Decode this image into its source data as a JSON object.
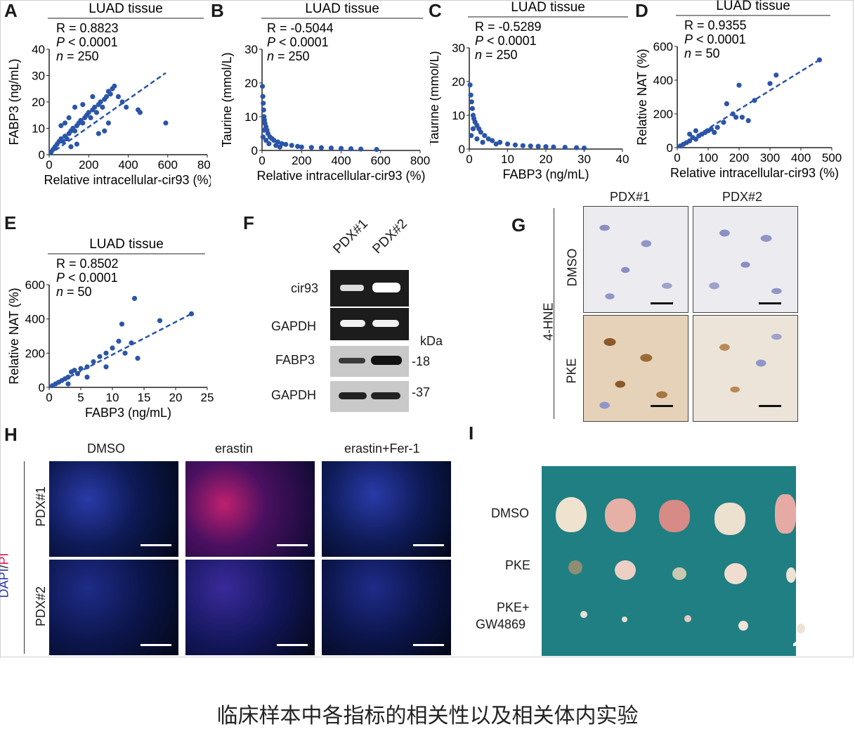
{
  "caption": "临床样本中各指标的相关性以及相关体内实验",
  "panel_letters": {
    "A": "A",
    "B": "B",
    "C": "C",
    "D": "D",
    "E": "E",
    "F": "F",
    "G": "G",
    "H": "H",
    "I": "I"
  },
  "scatter_panels": {
    "A": {
      "header": "LUAD tissue",
      "stats": [
        "R = 0.8823",
        "P < 0.0001",
        "n = 250"
      ],
      "xlabel": "Relative intracellular-cir93 (%)",
      "ylabel": "FABP3 (ng/mL)",
      "xticks": [
        "0",
        "200",
        "400",
        "600",
        "800"
      ],
      "yticks": [
        "0",
        "10",
        "20",
        "30",
        "40"
      ]
    },
    "B": {
      "header": "LUAD tissue",
      "stats": [
        "R = -0.5044",
        "P < 0.0001",
        "n = 250"
      ],
      "xlabel": "Relative intracellular-cir93 (%)",
      "ylabel": "Taurine (mmol/L)",
      "xticks": [
        "0",
        "200",
        "400",
        "600",
        "800"
      ],
      "yticks": [
        "0",
        "10",
        "20",
        "30"
      ]
    },
    "C": {
      "header": "LUAD tissue",
      "stats": [
        "R = -0.5289",
        "P < 0.0001",
        "n = 250"
      ],
      "xlabel": "FABP3 (ng/mL)",
      "ylabel": "Taurine (mmol/L)",
      "xticks": [
        "0",
        "10",
        "20",
        "30",
        "40"
      ],
      "yticks": [
        "0",
        "10",
        "20",
        "30"
      ]
    },
    "D": {
      "header": "LUAD tissue",
      "stats": [
        "R = 0.9355",
        "P < 0.0001",
        "n = 50"
      ],
      "xlabel": "Relative intracellular-cir93 (%)",
      "ylabel": "Relative NAT (%)",
      "xticks": [
        "0",
        "100",
        "200",
        "300",
        "400",
        "500"
      ],
      "yticks": [
        "0",
        "200",
        "400",
        "600"
      ]
    },
    "E": {
      "header": "LUAD tissue",
      "stats": [
        "R = 0.8502",
        "P < 0.0001",
        "n = 50"
      ],
      "xlabel": "FABP3 (ng/mL)",
      "ylabel": "Relative NAT (%)",
      "xticks": [
        "0",
        "5",
        "10",
        "15",
        "20",
        "25"
      ],
      "yticks": [
        "0",
        "200",
        "400",
        "600"
      ]
    }
  },
  "panel_F": {
    "lanes": [
      "PDX#1",
      "PDX#2"
    ],
    "rows": [
      "cir93",
      "GAPDH",
      "FABP3",
      "GAPDH"
    ],
    "unit": "kDa",
    "markers": [
      "-18",
      "-37"
    ]
  },
  "panel_G": {
    "columns": [
      "PDX#1",
      "PDX#2"
    ],
    "group_label": "4-HNE",
    "rows": [
      "DMSO",
      "PKE"
    ]
  },
  "panel_H": {
    "columns": [
      "DMSO",
      "erastin",
      "erastin+Fer-1"
    ],
    "rows": [
      "PDX#1",
      "PDX#2"
    ],
    "stain_label_dapi": "DAPI",
    "stain_label_sep": "/",
    "stain_label_pi": "PI"
  },
  "panel_I": {
    "rows": [
      "DMSO",
      "PKE",
      "PKE+",
      "GW4869"
    ]
  },
  "colors": {
    "dot": "#2b55a8",
    "fit": "#2b55a8",
    "dapi": "#2a3aa8",
    "pi": "#e0195a",
    "cloth": "#1f7f82"
  },
  "chart_data": [
    {
      "panel": "A",
      "type": "scatter",
      "title": "LUAD tissue",
      "xlabel": "Relative intracellular-cir93 (%)",
      "ylabel": "FABP3 (ng/mL)",
      "xlim": [
        0,
        800
      ],
      "ylim": [
        0,
        40
      ],
      "points": [
        [
          10,
          1
        ],
        [
          20,
          2
        ],
        [
          30,
          3
        ],
        [
          40,
          4
        ],
        [
          50,
          5
        ],
        [
          60,
          6
        ],
        [
          70,
          5
        ],
        [
          80,
          7
        ],
        [
          90,
          6
        ],
        [
          100,
          8
        ],
        [
          110,
          9
        ],
        [
          120,
          10
        ],
        [
          130,
          9
        ],
        [
          140,
          11
        ],
        [
          150,
          12
        ],
        [
          160,
          13
        ],
        [
          170,
          12
        ],
        [
          180,
          14
        ],
        [
          190,
          15
        ],
        [
          200,
          16
        ],
        [
          210,
          14
        ],
        [
          220,
          17
        ],
        [
          230,
          18
        ],
        [
          240,
          16
        ],
        [
          250,
          19
        ],
        [
          260,
          20
        ],
        [
          270,
          18
        ],
        [
          280,
          21
        ],
        [
          290,
          22
        ],
        [
          300,
          24
        ],
        [
          310,
          23
        ],
        [
          320,
          25
        ],
        [
          330,
          26
        ],
        [
          350,
          22
        ],
        [
          370,
          20
        ],
        [
          390,
          18
        ],
        [
          450,
          17
        ],
        [
          460,
          16
        ],
        [
          590,
          12
        ],
        [
          100,
          14
        ],
        [
          130,
          18
        ],
        [
          170,
          19
        ],
        [
          220,
          22
        ],
        [
          60,
          11
        ],
        [
          80,
          12
        ],
        [
          110,
          3
        ],
        [
          140,
          4
        ],
        [
          250,
          8
        ],
        [
          280,
          9
        ],
        [
          300,
          12
        ]
      ],
      "fit": [
        [
          0,
          0
        ],
        [
          590,
          31
        ]
      ]
    },
    {
      "panel": "B",
      "type": "scatter",
      "title": "LUAD tissue",
      "xlabel": "Relative intracellular-cir93 (%)",
      "ylabel": "Taurine (mmol/L)",
      "xlim": [
        0,
        800
      ],
      "ylim": [
        0,
        30
      ],
      "points": [
        [
          2,
          19
        ],
        [
          4,
          16
        ],
        [
          6,
          14
        ],
        [
          8,
          12
        ],
        [
          10,
          10
        ],
        [
          12,
          9
        ],
        [
          15,
          8
        ],
        [
          20,
          7
        ],
        [
          25,
          6
        ],
        [
          30,
          5
        ],
        [
          40,
          4
        ],
        [
          50,
          3.5
        ],
        [
          60,
          3
        ],
        [
          80,
          2.5
        ],
        [
          100,
          2
        ],
        [
          120,
          1.8
        ],
        [
          150,
          1.5
        ],
        [
          180,
          1.2
        ],
        [
          200,
          1
        ],
        [
          250,
          0.9
        ],
        [
          300,
          0.8
        ],
        [
          350,
          0.7
        ],
        [
          400,
          0.6
        ],
        [
          450,
          0.5
        ],
        [
          500,
          0.4
        ],
        [
          580,
          0.3
        ],
        [
          5,
          4
        ],
        [
          10,
          6
        ],
        [
          20,
          3
        ],
        [
          35,
          2
        ],
        [
          70,
          1.5
        ],
        [
          90,
          1
        ]
      ]
    },
    {
      "panel": "C",
      "type": "scatter",
      "title": "LUAD tissue",
      "xlabel": "FABP3 (ng/mL)",
      "ylabel": "Taurine (mmol/L)",
      "xlim": [
        0,
        40
      ],
      "ylim": [
        0,
        30
      ],
      "points": [
        [
          0.2,
          19
        ],
        [
          0.4,
          16
        ],
        [
          0.6,
          14
        ],
        [
          0.8,
          12
        ],
        [
          1,
          10
        ],
        [
          1.2,
          9
        ],
        [
          1.5,
          8
        ],
        [
          2,
          7
        ],
        [
          2.5,
          6
        ],
        [
          3,
          5
        ],
        [
          4,
          4
        ],
        [
          5,
          3
        ],
        [
          6,
          2.5
        ],
        [
          8,
          2
        ],
        [
          10,
          1.5
        ],
        [
          12,
          1.2
        ],
        [
          14,
          1
        ],
        [
          16,
          0.9
        ],
        [
          18,
          0.8
        ],
        [
          20,
          0.7
        ],
        [
          22,
          0.6
        ],
        [
          25,
          0.5
        ],
        [
          28,
          0.4
        ],
        [
          30,
          0.3
        ],
        [
          0.5,
          4
        ],
        [
          1,
          6
        ],
        [
          2,
          3
        ],
        [
          3.5,
          2
        ],
        [
          7,
          1.5
        ]
      ]
    },
    {
      "panel": "D",
      "type": "scatter",
      "title": "LUAD tissue",
      "xlabel": "Relative intracellular-cir93 (%)",
      "ylabel": "Relative NAT (%)",
      "xlim": [
        0,
        500
      ],
      "ylim": [
        0,
        600
      ],
      "points": [
        [
          10,
          10
        ],
        [
          20,
          20
        ],
        [
          30,
          30
        ],
        [
          40,
          40
        ],
        [
          50,
          60
        ],
        [
          60,
          50
        ],
        [
          70,
          70
        ],
        [
          80,
          80
        ],
        [
          90,
          90
        ],
        [
          100,
          100
        ],
        [
          110,
          110
        ],
        [
          120,
          90
        ],
        [
          130,
          120
        ],
        [
          150,
          150
        ],
        [
          160,
          260
        ],
        [
          180,
          200
        ],
        [
          190,
          180
        ],
        [
          200,
          370
        ],
        [
          210,
          180
        ],
        [
          230,
          160
        ],
        [
          250,
          280
        ],
        [
          300,
          380
        ],
        [
          320,
          430
        ],
        [
          460,
          520
        ],
        [
          40,
          80
        ],
        [
          60,
          100
        ]
      ],
      "fit": [
        [
          0,
          0
        ],
        [
          460,
          520
        ]
      ]
    },
    {
      "panel": "E",
      "type": "scatter",
      "title": "LUAD tissue",
      "xlabel": "FABP3 (ng/mL)",
      "ylabel": "Relative NAT (%)",
      "xlim": [
        0,
        25
      ],
      "ylim": [
        0,
        600
      ],
      "points": [
        [
          0.5,
          10
        ],
        [
          1,
          20
        ],
        [
          1.5,
          30
        ],
        [
          2,
          40
        ],
        [
          2.5,
          50
        ],
        [
          3,
          60
        ],
        [
          3.5,
          90
        ],
        [
          4,
          100
        ],
        [
          4.5,
          80
        ],
        [
          5,
          110
        ],
        [
          6,
          120
        ],
        [
          7,
          150
        ],
        [
          8,
          180
        ],
        [
          9,
          200
        ],
        [
          10,
          230
        ],
        [
          11,
          270
        ],
        [
          11.5,
          370
        ],
        [
          12,
          200
        ],
        [
          13,
          260
        ],
        [
          13.5,
          520
        ],
        [
          14,
          170
        ],
        [
          17.5,
          390
        ],
        [
          22.5,
          430
        ],
        [
          3,
          20
        ],
        [
          6,
          60
        ],
        [
          9,
          120
        ]
      ],
      "fit": [
        [
          0,
          0
        ],
        [
          22.5,
          430
        ]
      ]
    }
  ]
}
